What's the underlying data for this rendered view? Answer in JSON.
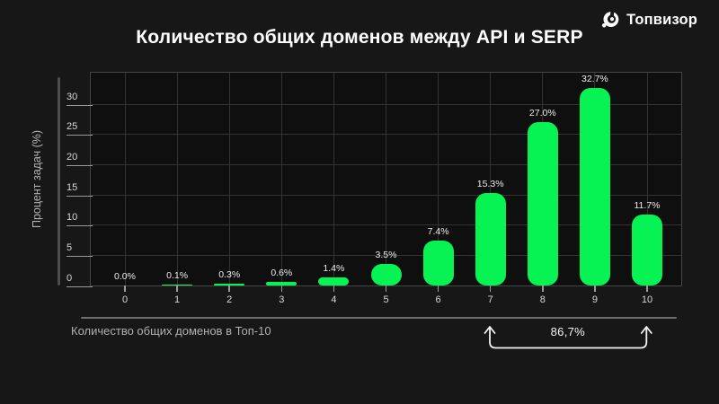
{
  "header": {
    "title": "Количество общих доменов между API и SERP",
    "brand": "Топвизор"
  },
  "logo": {
    "icon": "topvisor-swirl-icon"
  },
  "chart_data": {
    "type": "bar",
    "title": "Количество общих доменов между API и SERP",
    "xlabel": "Количество общих доменов в Топ-10",
    "ylabel": "Процент задач (%)",
    "categories": [
      "0",
      "1",
      "2",
      "3",
      "4",
      "5",
      "6",
      "7",
      "8",
      "9",
      "10"
    ],
    "values": [
      0.0,
      0.1,
      0.3,
      0.6,
      1.4,
      3.5,
      7.4,
      15.3,
      27.0,
      32.7,
      11.7
    ],
    "value_labels": [
      "0.0%",
      "0.1%",
      "0.3%",
      "0.6%",
      "1.4%",
      "3.5%",
      "7.4%",
      "15.3%",
      "27.0%",
      "32.7%",
      "11.7%"
    ],
    "yticks": [
      0,
      5,
      10,
      15,
      20,
      25,
      30
    ],
    "ylim": [
      0,
      35.5
    ],
    "grid": true,
    "legend": "none",
    "bar_color": "#07F353",
    "annotation": {
      "label": "86,7%",
      "from_category": "7",
      "to_category": "10"
    }
  },
  "colors": {
    "background": "#171717",
    "plot_background": "#0f0f0f",
    "grid": "#333333",
    "bar": "#07F353",
    "text_primary": "#ffffff",
    "text_muted": "#b0b0b0"
  }
}
